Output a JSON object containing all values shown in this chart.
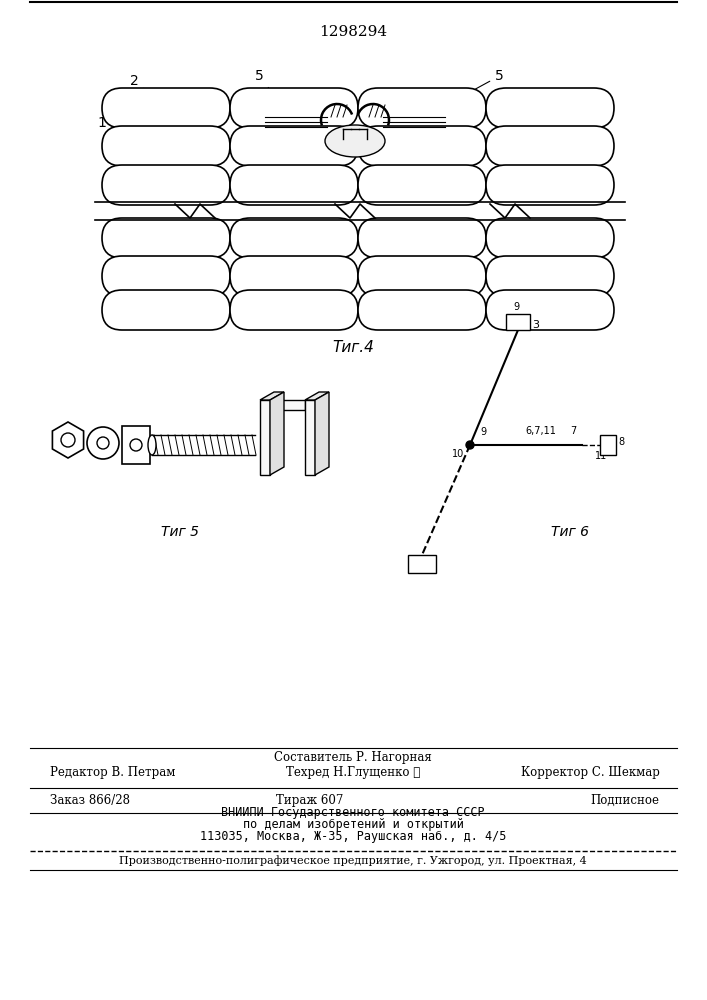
{
  "patent_number": "1298294",
  "fig4_label": "Τиг.4",
  "fig5_label": "Τиг 5",
  "fig6_label": "Τиг 6",
  "background_color": "#ffffff",
  "footer_line1_center": "Составитель Р. Нагорная",
  "footer_line2_center": "Техред Н.Глущенко ℓ",
  "footer_line1_left": "Редактор В. Петрам",
  "footer_line1_right": "Корректор С. Шекмар",
  "footer_line3_left": "Заказ 866/28",
  "footer_line3_center": "Тираж 607",
  "footer_line3_right": "Подписное",
  "footer_line4": "ВНИИПИ Государственного комитета СССР",
  "footer_line5": "по делам изобретений и открытий",
  "footer_line6": "113035, Москва, Ж-35, Раушская наб., д. 4/5",
  "footer_last": "Производственно-полиграфическое предприятие, г. Ужгород, ул. Проектная, 4"
}
